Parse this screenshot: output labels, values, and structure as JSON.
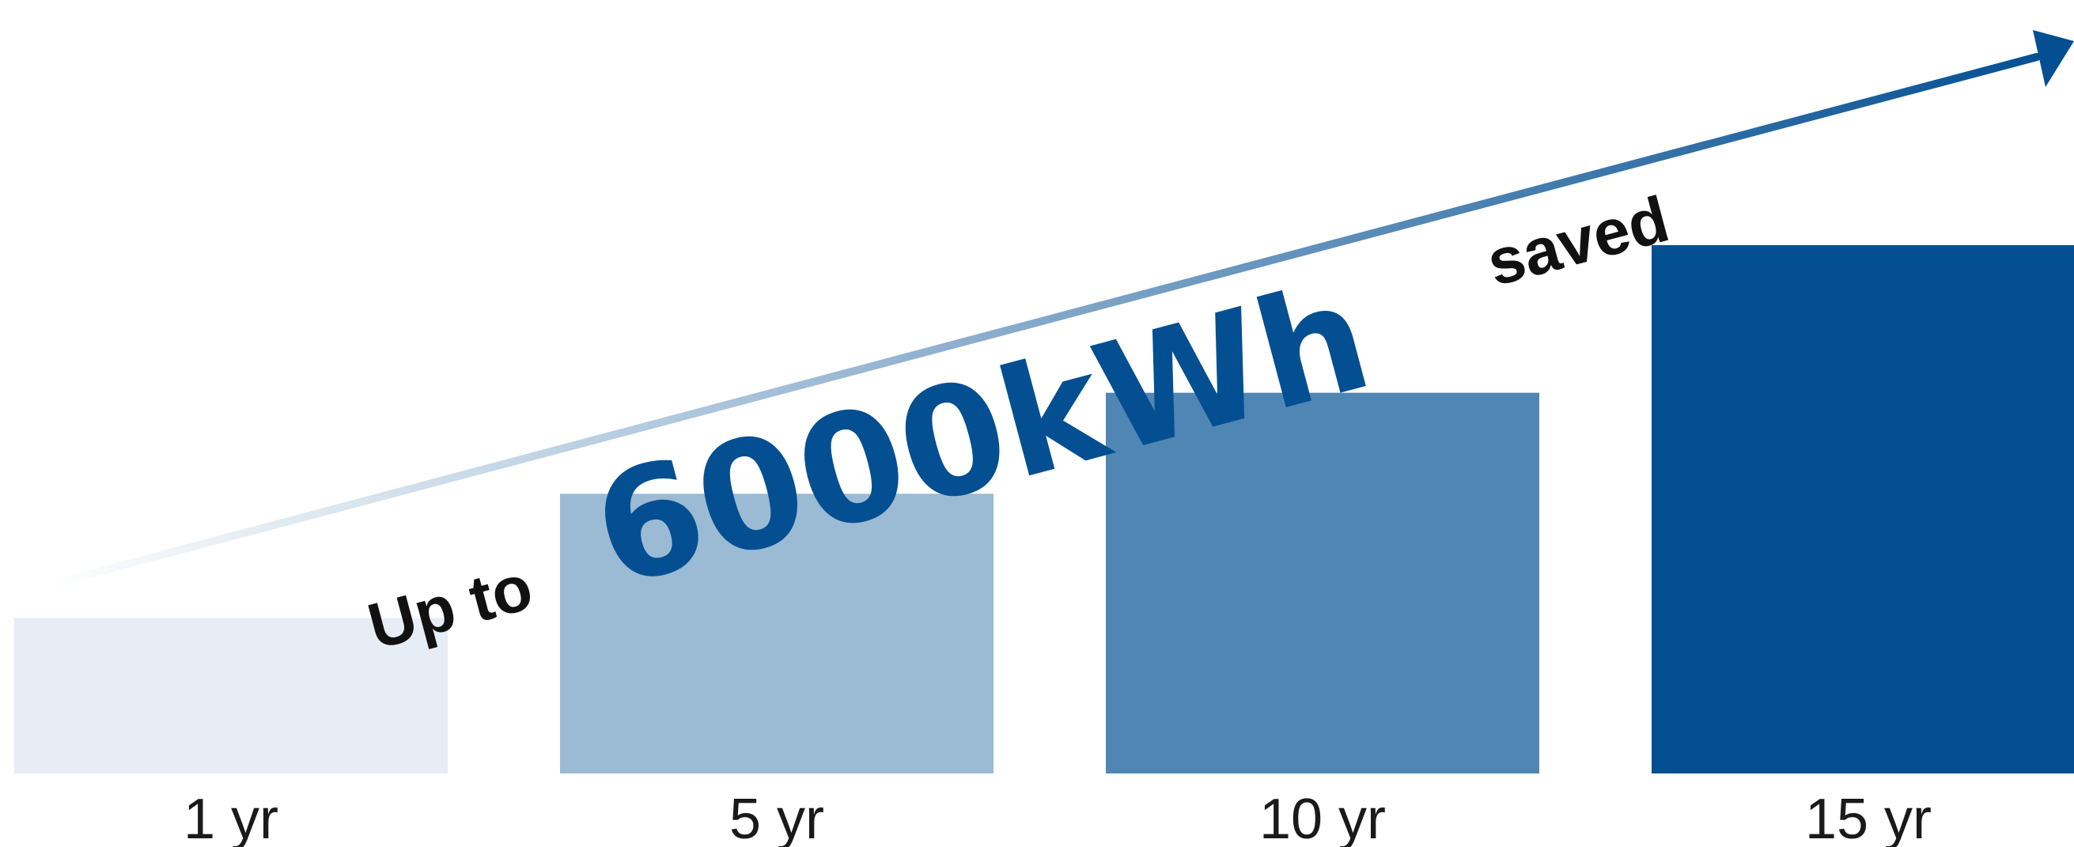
{
  "chart_data": {
    "type": "bar",
    "categories": [
      "1 yr",
      "5 yr",
      "10 yr",
      "15 yr"
    ],
    "values": [
      1,
      1.8,
      2.45,
      3.4
    ],
    "colors": [
      "#E7EDF5",
      "#9BBAD3",
      "#4F86B4",
      "#034F92"
    ],
    "annotation": {
      "prefix": "Up to",
      "highlight": "6000kWh",
      "suffix": "saved",
      "arrow_color_start": "#FFFFFF",
      "arrow_color_end": "#034F92"
    },
    "ylim": [
      0,
      3.6
    ],
    "grid": false,
    "legend": "none"
  }
}
